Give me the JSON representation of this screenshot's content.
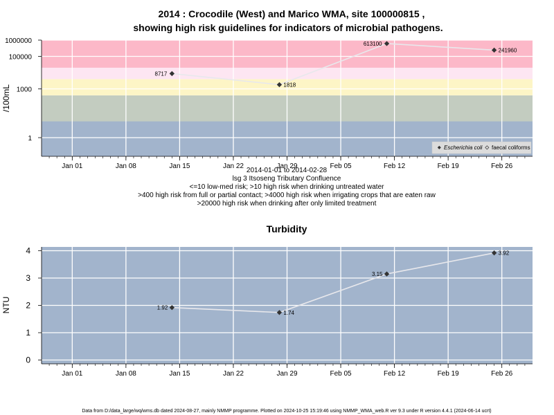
{
  "header": {
    "title_line1": "2014 : Crocodile (West) and Marico WMA, site 100000815 ,",
    "title_line2": "showing high risk guidelines for indicators of microbial pathogens."
  },
  "micro": {
    "subtitle": [
      "2014-01-01 to 2014-02-28",
      "lsg 3 Itsoseng Tributary Confluence",
      "<=10 low-med risk; >10 high risk when drinking untreated water",
      ">400 high risk from full or partial contact; >4000 high risk when irrigating crops that are eaten raw",
      ">20000 high risk when drinking after only limited treatment"
    ]
  },
  "turbidity": {
    "title": "Turbidity"
  },
  "footer": "Data from D:/data_large/wq/wms.db dated 2024-08-27, mainly NMMP programme. Plotted on 2024-10-25 15:19:46 using NMMP_WMA_web.R ver 9.3 under R version 4.4.1 (2024-06-14 ucrt)",
  "colors": {
    "band_low": "#a2b4cc",
    "band_10": "#c3ccc0",
    "band_400": "#fdf5c6",
    "band_4000": "#fde6f2",
    "band_20000": "#fcb8c8",
    "turbidity_bg": "#a2b4cc",
    "line": "#e8e8ec",
    "marker": "#333333"
  },
  "chart_data": [
    {
      "type": "line",
      "title": "",
      "ylabel": "/100mL",
      "yscale": "log",
      "yticks": [
        "1",
        "1000",
        "100000",
        "1000000"
      ],
      "xticks": [
        "Jan 01",
        "Jan 08",
        "Jan 15",
        "Jan 22",
        "Jan 29",
        "Feb 05",
        "Feb 12",
        "Feb 19",
        "Feb 26"
      ],
      "risk_bands": [
        10,
        400,
        4000,
        20000
      ],
      "series": [
        {
          "name": "Escherichia coli",
          "x": [
            "2014-01-14",
            "2014-01-28",
            "2014-02-11",
            "2014-02-25"
          ],
          "y": [
            8717,
            1818,
            613100,
            241960
          ],
          "labels": [
            "8717",
            "1818",
            "613100",
            "241960"
          ]
        },
        {
          "name": "faecal coliforms",
          "x": [],
          "y": [],
          "labels": []
        }
      ],
      "legend": "bottom-right"
    },
    {
      "type": "line",
      "title": "Turbidity",
      "ylabel": "NTU",
      "yticks": [
        "0",
        "1",
        "2",
        "3",
        "4"
      ],
      "xticks": [
        "Jan 01",
        "Jan 08",
        "Jan 15",
        "Jan 22",
        "Jan 29",
        "Feb 05",
        "Feb 12",
        "Feb 19",
        "Feb 26"
      ],
      "series": [
        {
          "name": "",
          "x": [
            "2014-01-14",
            "2014-01-28",
            "2014-02-11",
            "2014-02-25"
          ],
          "y": [
            1.92,
            1.74,
            3.15,
            3.92
          ],
          "labels": [
            "1.92",
            "1.74",
            "3.15",
            "3.92"
          ]
        }
      ]
    }
  ]
}
